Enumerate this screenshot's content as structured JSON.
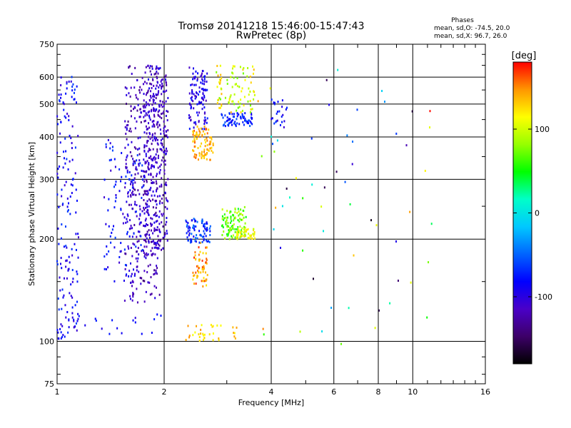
{
  "chart_data": {
    "type": "scatter",
    "title": "Tromsø 20141218 15:46:00-15:47:43",
    "subtitle": "RwPretec (8p)",
    "xlabel": "Frequency [MHz]",
    "ylabel": "Stationary phase Virtual Height [km]",
    "x_scale": "log",
    "y_scale": "log",
    "xlim": [
      1,
      16
    ],
    "ylim": [
      75,
      750
    ],
    "x_ticks": [
      1,
      2,
      4,
      6,
      8,
      10,
      16
    ],
    "y_ticks": [
      75,
      100,
      200,
      300,
      400,
      500,
      600,
      750
    ],
    "grid": true,
    "stats": {
      "heading": "Phases",
      "line1": "mean, sd,O: -74.5, 20.0",
      "line2": "mean, sd,X:  96.7, 26.0"
    },
    "colorbar": {
      "label": "[deg]",
      "range": [
        -180,
        180
      ],
      "ticks": [
        100,
        0,
        -100
      ],
      "colors": [
        "#000000",
        "#3d0068",
        "#4a00c8",
        "#0000ff",
        "#0064ff",
        "#00c8ff",
        "#00ffc8",
        "#00ff00",
        "#96ff00",
        "#ffff00",
        "#ff9600",
        "#ff0000"
      ]
    },
    "clusters": [
      {
        "x": [
          1.0,
          1.15
        ],
        "y": [
          100,
          620
        ],
        "phase": [
          -110,
          -60
        ],
        "n": 160
      },
      {
        "x": [
          1.55,
          1.95
        ],
        "y": [
          130,
          650
        ],
        "phase": [
          -140,
          -95
        ],
        "n": 320
      },
      {
        "x": [
          1.75,
          2.05
        ],
        "y": [
          180,
          650
        ],
        "phase": [
          -130,
          -90
        ],
        "n": 360
      },
      {
        "x": [
          1.35,
          1.75
        ],
        "y": [
          150,
          400
        ],
        "phase": [
          -110,
          -60
        ],
        "n": 120
      },
      {
        "x": [
          2.35,
          2.65
        ],
        "y": [
          420,
          640
        ],
        "phase": [
          -120,
          -70
        ],
        "n": 110
      },
      {
        "x": [
          2.4,
          2.75
        ],
        "y": [
          340,
          430
        ],
        "phase": [
          120,
          160
        ],
        "n": 90
      },
      {
        "x": [
          2.4,
          2.65
        ],
        "y": [
          145,
          195
        ],
        "phase": [
          120,
          170
        ],
        "n": 60
      },
      {
        "x": [
          2.3,
          2.7
        ],
        "y": [
          195,
          230
        ],
        "phase": [
          -100,
          -40
        ],
        "n": 80
      },
      {
        "x": [
          2.9,
          3.4
        ],
        "y": [
          200,
          250
        ],
        "phase": [
          40,
          100
        ],
        "n": 110
      },
      {
        "x": [
          3.2,
          3.6
        ],
        "y": [
          200,
          215
        ],
        "phase": [
          90,
          130
        ],
        "n": 40
      },
      {
        "x": [
          2.9,
          3.55
        ],
        "y": [
          430,
          470
        ],
        "phase": [
          -90,
          -50
        ],
        "n": 70
      },
      {
        "x": [
          2.8,
          3.6
        ],
        "y": [
          470,
          650
        ],
        "phase": [
          70,
          140
        ],
        "n": 90
      },
      {
        "x": [
          2.3,
          3.2
        ],
        "y": [
          100,
          112
        ],
        "phase": [
          110,
          150
        ],
        "n": 35
      },
      {
        "x": [
          4.0,
          4.5
        ],
        "y": [
          420,
          530
        ],
        "phase": [
          -110,
          -60
        ],
        "n": 25
      },
      {
        "x": [
          3.6,
          12.0
        ],
        "y": [
          95,
          640
        ],
        "phase": [
          -180,
          180
        ],
        "n": 60
      },
      {
        "x": [
          1.0,
          2.0
        ],
        "y": [
          105,
          120
        ],
        "phase": [
          -110,
          -70
        ],
        "n": 25
      }
    ]
  }
}
